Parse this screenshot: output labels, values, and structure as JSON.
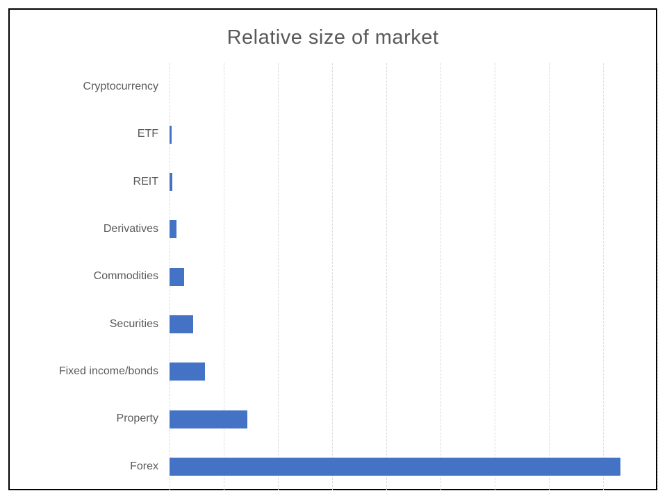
{
  "chart_data": {
    "type": "bar",
    "orientation": "horizontal",
    "title": "Relative size of market",
    "categories": [
      "Cryptocurrency",
      "ETF",
      "REIT",
      "Derivatives",
      "Commodities",
      "Securities",
      "Fixed income/bonds",
      "Property",
      "Forex"
    ],
    "values": [
      0,
      0.4,
      0.5,
      1.3,
      2.7,
      4.4,
      6.5,
      14.4,
      83.2
    ],
    "xlabel": "",
    "ylabel": "",
    "xlim": [
      0,
      90
    ],
    "gridline_step": 10,
    "x_tick_labels": "none",
    "legend": "none",
    "grid": "vertical dashed gridlines, no tick labels",
    "note": "x-axis gridlines are unlabeled; values are estimated relative units read from gridline spacing",
    "colors": {
      "bar": "#4472C4",
      "gridline": "#D9D9D9",
      "text": "#595959",
      "frame_border": "#000000",
      "background": "#FFFFFF"
    }
  }
}
